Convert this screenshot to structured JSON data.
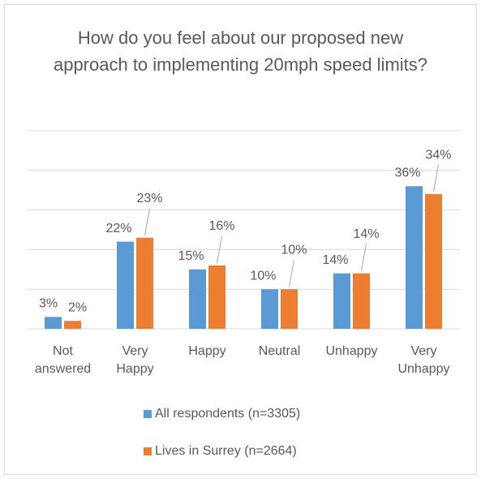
{
  "chart_data": {
    "type": "bar",
    "title": "How do you feel about our proposed new approach to implementing 20mph speed limits?",
    "categories": [
      "Not answered",
      "Very Happy",
      "Happy",
      "Neutral",
      "Unhappy",
      "Very Unhappy"
    ],
    "series": [
      {
        "name": "All respondents (n=3305)",
        "color": "#5b9bd5",
        "values": [
          3,
          22,
          15,
          10,
          14,
          36
        ],
        "value_labels": [
          "3%",
          "22%",
          "15%",
          "10%",
          "14%",
          "36%"
        ]
      },
      {
        "name": "Lives in Surrey (n=2664)",
        "color": "#ed7d31",
        "values": [
          2,
          23,
          16,
          10,
          14,
          34
        ],
        "value_labels": [
          "2%",
          "23%",
          "16%",
          "10%",
          "14%",
          "34%"
        ]
      }
    ],
    "ylim": [
      0,
      50
    ],
    "yticks": [
      0,
      10,
      20,
      30,
      40,
      50
    ],
    "grid": true
  }
}
